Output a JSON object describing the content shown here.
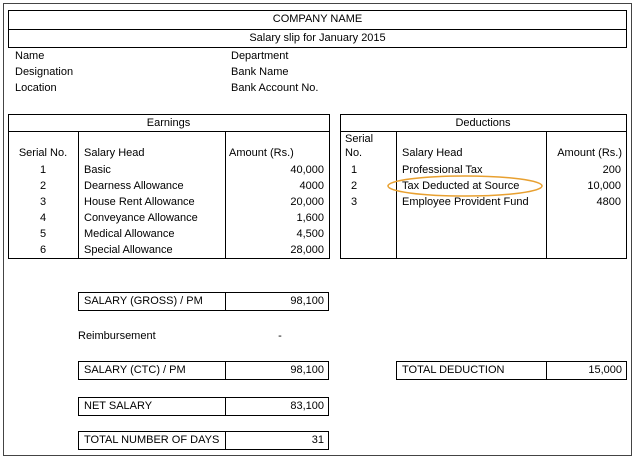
{
  "header": {
    "company": "COMPANY NAME",
    "title": "Salary slip for January 2015"
  },
  "info": {
    "left": [
      "Name",
      "Designation",
      "Location"
    ],
    "right": [
      "Department",
      "Bank Name",
      "Bank Account No."
    ]
  },
  "earnings": {
    "title": "Earnings",
    "columns": [
      "Serial No.",
      "Salary Head",
      "Amount (Rs.)"
    ],
    "rows": [
      [
        1,
        "Basic",
        "40,000"
      ],
      [
        2,
        "Dearness Allowance",
        "4000"
      ],
      [
        3,
        "House Rent Allowance",
        "20,000"
      ],
      [
        4,
        "Conveyance Allowance",
        "1,600"
      ],
      [
        5,
        "Medical Allowance",
        "4,500"
      ],
      [
        6,
        "Special Allowance",
        "28,000"
      ]
    ]
  },
  "deductions": {
    "title": "Deductions",
    "columns": [
      "Serial No.",
      "Salary Head",
      "Amount (Rs.)"
    ],
    "rows": [
      [
        1,
        "Professional Tax",
        "200"
      ],
      [
        2,
        "Tax Deducted at Source",
        "10,000"
      ],
      [
        3,
        "Employee Provident Fund",
        "4800"
      ]
    ]
  },
  "summary": {
    "gross": [
      "SALARY (GROSS) / PM",
      "98,100"
    ],
    "reimbursement": [
      "Reimbursement",
      "-"
    ],
    "ctc": [
      "SALARY (CTC) / PM",
      "98,100"
    ],
    "net": [
      "NET SALARY",
      "83,100"
    ],
    "days": [
      "TOTAL NUMBER OF DAYS",
      "31"
    ],
    "total_deduction": [
      "TOTAL DEDUCTION",
      "15,000"
    ]
  }
}
